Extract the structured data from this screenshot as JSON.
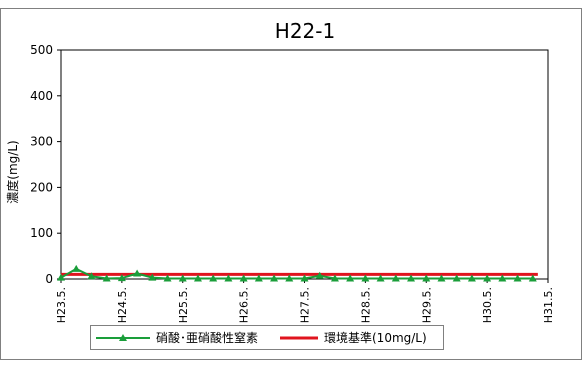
{
  "chart_data": {
    "type": "line",
    "title": "H22-1",
    "ylabel": "濃度(mg/L)",
    "xlabel": "",
    "ylim": [
      0,
      500
    ],
    "yticks": [
      0,
      100,
      200,
      300,
      400,
      500
    ],
    "xlim": [
      0,
      96
    ],
    "xticks": [
      {
        "label": "H23.5.",
        "x": 0
      },
      {
        "label": "H24.5.",
        "x": 12
      },
      {
        "label": "H25.5.",
        "x": 24
      },
      {
        "label": "H26.5.",
        "x": 36
      },
      {
        "label": "H27.5.",
        "x": 48
      },
      {
        "label": "H28.5.",
        "x": 60
      },
      {
        "label": "H29.5.",
        "x": 72
      },
      {
        "label": "H30.5.",
        "x": 84
      },
      {
        "label": "H31.5.",
        "x": 96
      }
    ],
    "grid": false,
    "legend_position": "bottom",
    "series": [
      {
        "name": "硝酸･亜硝酸性窒素",
        "color": "#1a9e3a",
        "marker": "triangle",
        "x": [
          0,
          3,
          6,
          9,
          12,
          15,
          18,
          21,
          24,
          27,
          30,
          33,
          36,
          39,
          42,
          45,
          48,
          51,
          54,
          57,
          60,
          63,
          66,
          69,
          72,
          75,
          78,
          81,
          84,
          87,
          90,
          93
        ],
        "values": [
          3,
          22,
          6,
          1,
          2,
          12,
          3,
          1,
          1,
          1,
          1,
          1,
          1,
          1,
          1,
          1,
          1,
          7,
          1,
          1,
          1,
          1,
          1,
          1,
          1,
          1,
          1,
          1,
          1,
          1,
          1,
          1
        ]
      },
      {
        "name": "環境基準(10mg/L)",
        "color": "#e0141e",
        "marker": "none",
        "x": [
          0,
          94
        ],
        "values": [
          10,
          10
        ]
      }
    ]
  }
}
